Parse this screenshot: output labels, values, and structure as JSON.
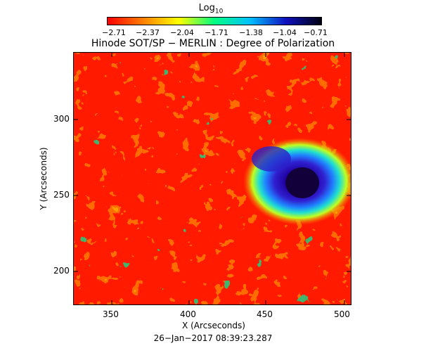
{
  "colorbar": {
    "title": "Log",
    "title_subscript": "10",
    "tick_labels": [
      "−2.71",
      "−2.37",
      "−2.04",
      "−1.71",
      "−1.38",
      "−1.04",
      "−0.71"
    ],
    "colors": [
      "#ff0000",
      "#ff8000",
      "#ffff00",
      "#00ff80",
      "#00c0ff",
      "#1010c0",
      "#000010"
    ]
  },
  "plot": {
    "title": "Hinode SOT/SP − MERLIN : Degree of Polarization",
    "x_label": "X (Arcseconds)",
    "y_label": "Y (Arcseconds)",
    "x_ticks": [
      "350",
      "400",
      "450",
      "500"
    ],
    "y_ticks": [
      "200",
      "250",
      "300"
    ]
  },
  "timestamp": "26−Jan−2017 08:39:23.287"
}
